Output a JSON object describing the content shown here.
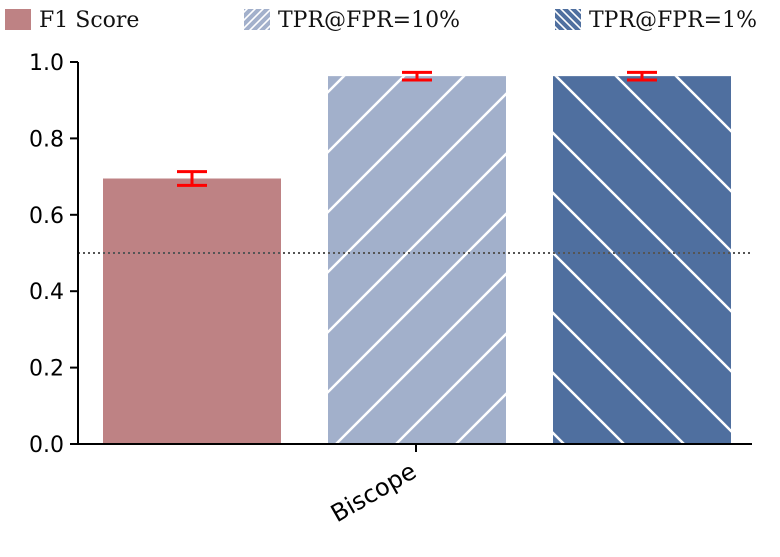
{
  "chart_data": {
    "type": "bar",
    "categories": [
      "Biscope"
    ],
    "series": [
      {
        "name": "F1 Score",
        "values": [
          0.695
        ],
        "error": [
          0.018
        ],
        "color": "#be8284",
        "hatch": "none"
      },
      {
        "name": "TPR@FPR=10%",
        "values": [
          0.963
        ],
        "error": [
          0.01
        ],
        "color": "#a2b0cb",
        "hatch": "forward"
      },
      {
        "name": "TPR@FPR=1%",
        "values": [
          0.963
        ],
        "error": [
          0.01
        ],
        "color": "#4f6f9f",
        "hatch": "backward"
      }
    ],
    "ylim": [
      0,
      1.0
    ],
    "yticks": [
      "0.0",
      "0.2",
      "0.4",
      "0.6",
      "0.8",
      "1.0"
    ],
    "reference_line": 0.5,
    "error_bar_color": "#ff0000",
    "legend_position": "top",
    "grid": false
  }
}
